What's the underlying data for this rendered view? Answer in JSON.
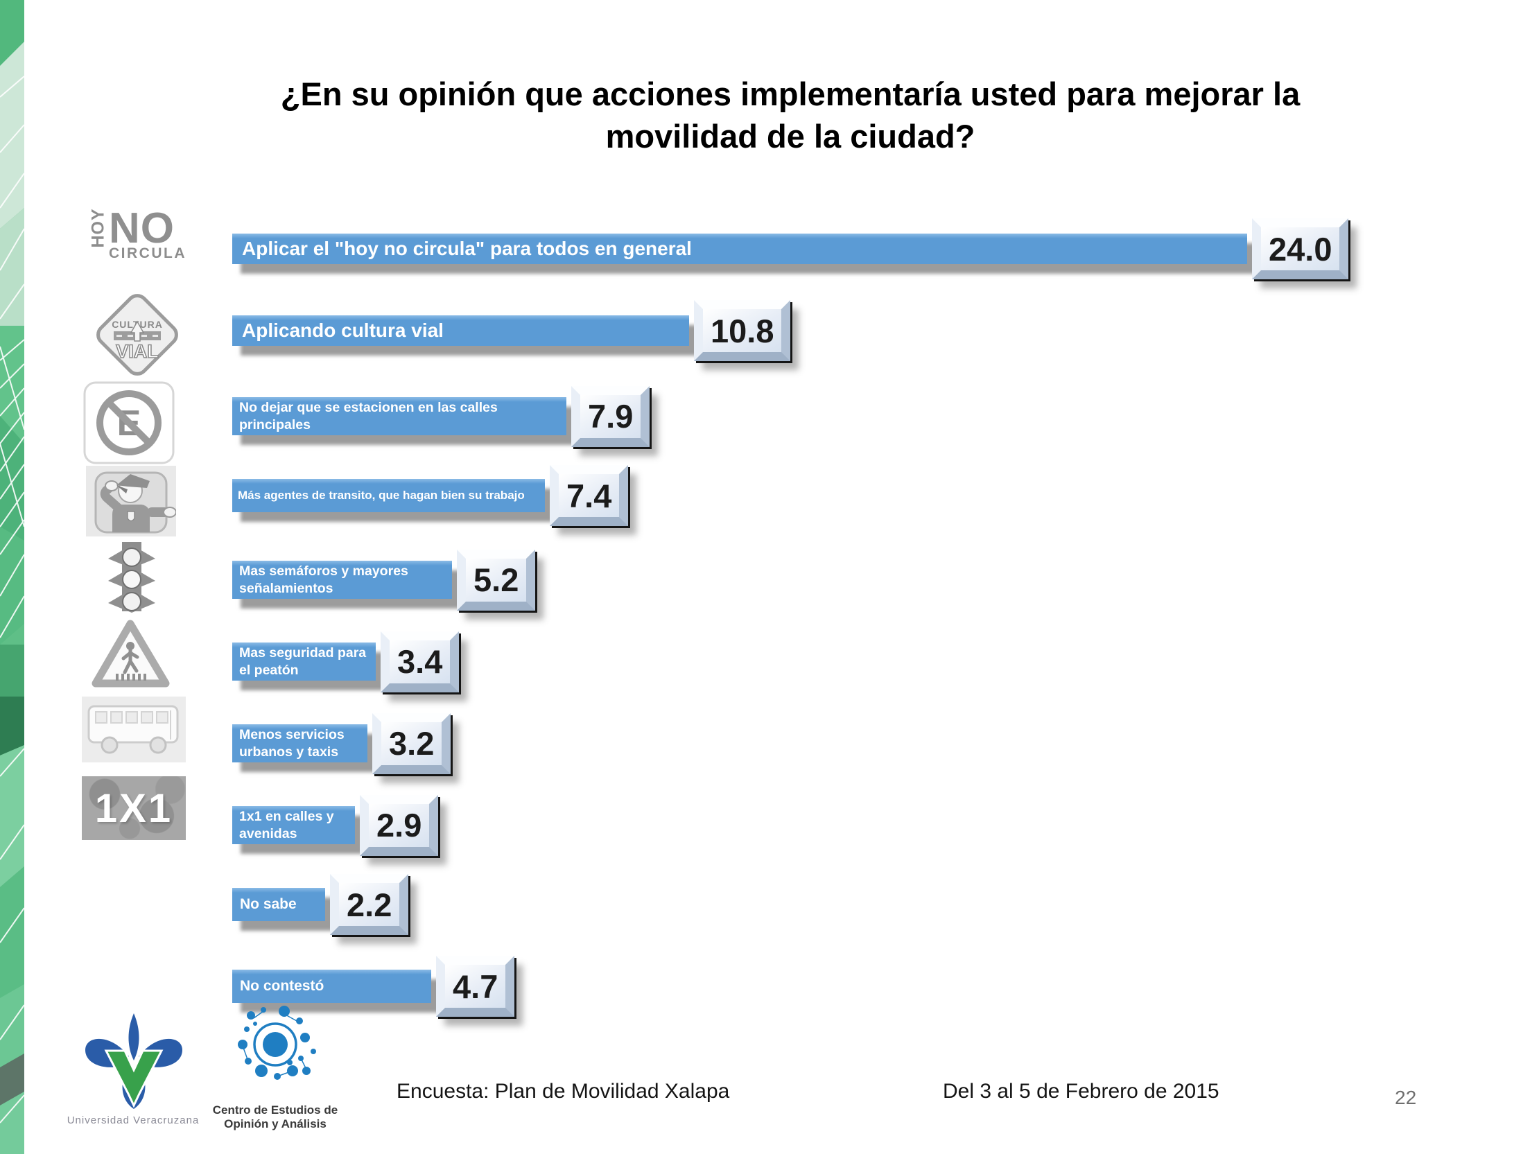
{
  "slide": {
    "title_lines": [
      "¿En su opinión que acciones implementaría usted para mejorar la",
      "movilidad de la ciudad?"
    ],
    "page_number": "22",
    "footer": {
      "survey": "Encuesta: Plan de Movilidad Xalapa",
      "dates": "Del 3 al 5 de Febrero de 2015"
    },
    "logos": {
      "uv_caption": "Universidad Veracruzana",
      "ceoa_caption_line1": "Centro de Estudios de",
      "ceoa_caption_line2": "Opinión y Análisis"
    }
  },
  "icon_texts": {
    "hoy": "HOY",
    "no": "NO",
    "circula": "CIRCULA",
    "cultura": "CULTURA",
    "vial": "VIAL",
    "no_parking_e": "E",
    "one_by_one": "1X1"
  },
  "colors": {
    "bar_blue": "#5b9bd5",
    "bar_shadow": "#9e9e9e",
    "value_box_face": "#e7edf6",
    "value_text": "#1b1b1b",
    "strip_green": "#5fbf87",
    "uv_blue": "#2a5ca8",
    "uv_green": "#38a14b",
    "ceoa_blue": "#1f7ec2"
  },
  "chart_data": {
    "type": "bar",
    "orientation": "horizontal",
    "title": "¿En su opinión que acciones implementaría usted para mejorar la movilidad de la ciudad?",
    "categories": [
      "Aplicar el \"hoy no circula\" para todos en general",
      "Aplicando cultura vial",
      "No dejar que se estacionen en las calles principales",
      "Más agentes de transito, que hagan bien su trabajo",
      "Mas semáforos y mayores señalamientos",
      "Mas seguridad para el peatón",
      "Menos servicios urbanos y taxis",
      "1x1 en calles y avenidas",
      "No sabe",
      "No contestó"
    ],
    "values": [
      24.0,
      10.8,
      7.9,
      7.4,
      5.2,
      3.4,
      3.2,
      2.9,
      2.2,
      4.7
    ],
    "value_labels": [
      "24.0",
      "10.8",
      "7.9",
      "7.4",
      "5.2",
      "3.4",
      "3.2",
      "2.9",
      "2.2",
      "4.7"
    ],
    "icons": [
      "hoy-no-circula-icon",
      "cultura-vial-icon",
      "no-parking-icon",
      "traffic-agent-icon",
      "traffic-light-icon",
      "pedestrian-crossing-icon",
      "bus-icon",
      "one-by-one-icon",
      null,
      null
    ],
    "xlim": [
      0,
      24.5
    ],
    "legend": false,
    "grid": false
  }
}
